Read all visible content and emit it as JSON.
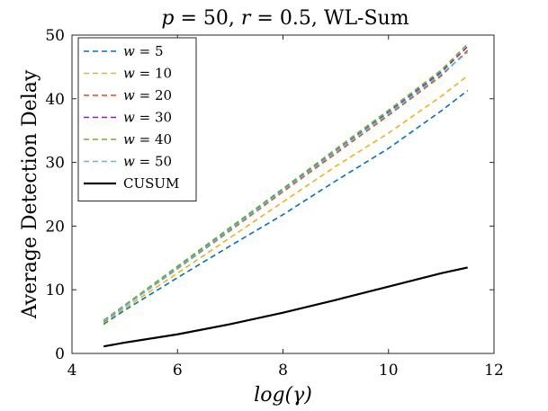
{
  "chart_data": {
    "type": "line",
    "title": "p = 50, r = 0.5, WL-Sum",
    "xlabel": "log(γ)",
    "ylabel": "Average Detection Delay",
    "xlim": [
      4,
      12
    ],
    "ylim": [
      0,
      50
    ],
    "xticks": [
      "4",
      "6",
      "8",
      "10",
      "12"
    ],
    "yticks": [
      "0",
      "10",
      "20",
      "30",
      "40",
      "50"
    ],
    "legend_position": "top-left",
    "grid": false,
    "x": [
      4.6,
      5.0,
      6.0,
      7.0,
      8.0,
      9.0,
      10.0,
      11.0,
      11.5
    ],
    "series": [
      {
        "name": "w = 5",
        "color": "#0072BD",
        "dash": true,
        "values": [
          4.6,
          6.8,
          11.9,
          16.9,
          21.8,
          27.1,
          32.2,
          38.1,
          41.3
        ]
      },
      {
        "name": "w = 10",
        "color": "#EDB120",
        "dash": true,
        "values": [
          4.8,
          7.1,
          12.6,
          18.2,
          23.8,
          29.4,
          34.6,
          40.4,
          43.6
        ]
      },
      {
        "name": "w = 20",
        "color": "#D95319",
        "dash": true,
        "values": [
          5.0,
          7.4,
          13.3,
          19.3,
          25.4,
          31.4,
          37.4,
          43.6,
          47.6
        ]
      },
      {
        "name": "w = 30",
        "color": "#7E2F8E",
        "dash": true,
        "values": [
          5.1,
          7.5,
          13.5,
          19.6,
          25.7,
          31.8,
          37.9,
          44.2,
          48.2
        ]
      },
      {
        "name": "w = 40",
        "color": "#77AC30",
        "dash": true,
        "values": [
          5.2,
          7.6,
          13.7,
          19.8,
          25.9,
          32.1,
          38.2,
          44.5,
          48.6
        ]
      },
      {
        "name": "w = 50",
        "color": "#4DBEEE",
        "dash": true,
        "values": [
          5.1,
          7.4,
          13.4,
          19.5,
          25.6,
          31.7,
          37.7,
          43.9,
          47.3
        ]
      },
      {
        "name": "CUSUM",
        "color": "#000000",
        "dash": false,
        "values": [
          1.1,
          1.7,
          3.0,
          4.6,
          6.4,
          8.4,
          10.5,
          12.6,
          13.5
        ]
      }
    ]
  }
}
